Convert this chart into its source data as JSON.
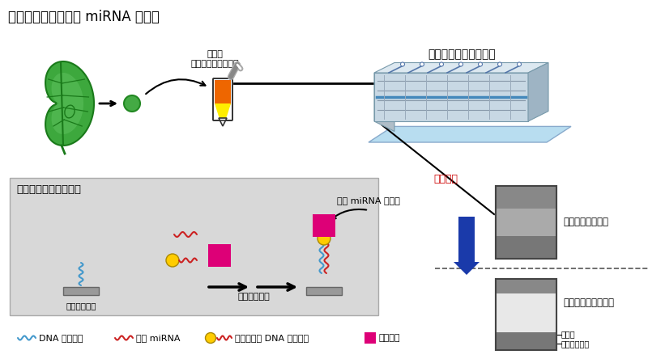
{
  "title": "植物の搾汁液からの miRNA の検出",
  "title_fontsize": 12,
  "bg_color": "#ffffff",
  "device_box_label": "デバイス流路内の反応",
  "device_box_color": "#d8d8d8",
  "microfluidic_label": "マイクロ流体デバイス",
  "fluorescence_label": "蛍光検出",
  "fluorescence_color": "#cc0000",
  "detection_label": "標的 miRNA を検出",
  "device_base_label": "デバイス基盤",
  "sample_intro_label": "サンプル導入",
  "juice_label": "搾汁液\n（フィルター処理）",
  "condition1_label": "栄養が十分な条件",
  "condition2_label": "リンが欠乏した条件",
  "detection_surface_label": "検出面",
  "microchannel_label": "マイクロ流路",
  "legend_dna_probe": "DNA プローブ",
  "legend_target_mirna": "標的 miRNA",
  "legend_biotin_dna": "ビオチン化 DNA プローブ",
  "legend_fluorescent": "蛍光物質",
  "leaf_green_dark": "#1a7a1a",
  "leaf_green_mid": "#3da83d",
  "leaf_green_light": "#6aca6a",
  "tube_orange": "#ee6600",
  "tube_yellow": "#ffee00",
  "magenta": "#dd0077",
  "cyan_wave": "#4499cc",
  "red_wave": "#cc2222",
  "yellow_dot": "#ffcc00",
  "blue_arrow": "#1a3aaa",
  "panel_dark_gray": "#888888",
  "panel_mid_gray": "#aaaaaa",
  "panel_light": "#e0e0e0"
}
